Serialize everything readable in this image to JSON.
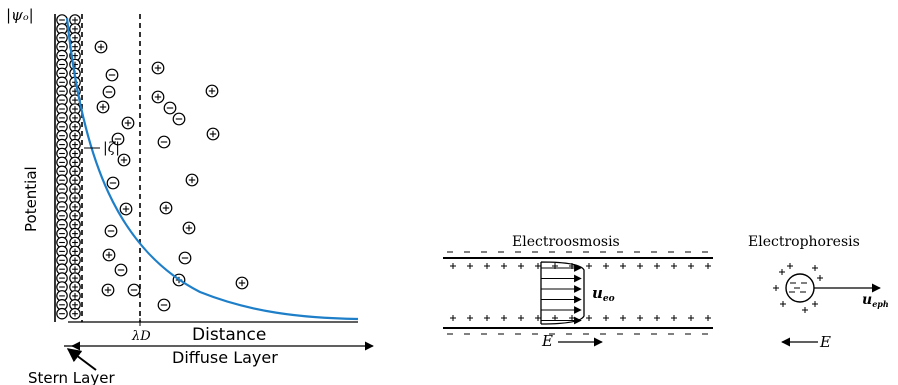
{
  "edl": {
    "psi_label": "|ψₒ|",
    "zeta_label": "|ζ|",
    "potential_label": "Potential",
    "lambda_label": "λD",
    "distance_label": "Distance",
    "diffuse_label": "Diffuse Layer",
    "stern_label": "Stern Layer",
    "curve_color": "#1e7fc8"
  },
  "electroosmosis": {
    "title": "Electroosmosis",
    "velocity_label": "u",
    "velocity_sub": "eo",
    "field_label": "E"
  },
  "electrophoresis": {
    "title": "Electrophoresis",
    "velocity_label": "u",
    "velocity_sub": "eph",
    "field_label": "E"
  }
}
